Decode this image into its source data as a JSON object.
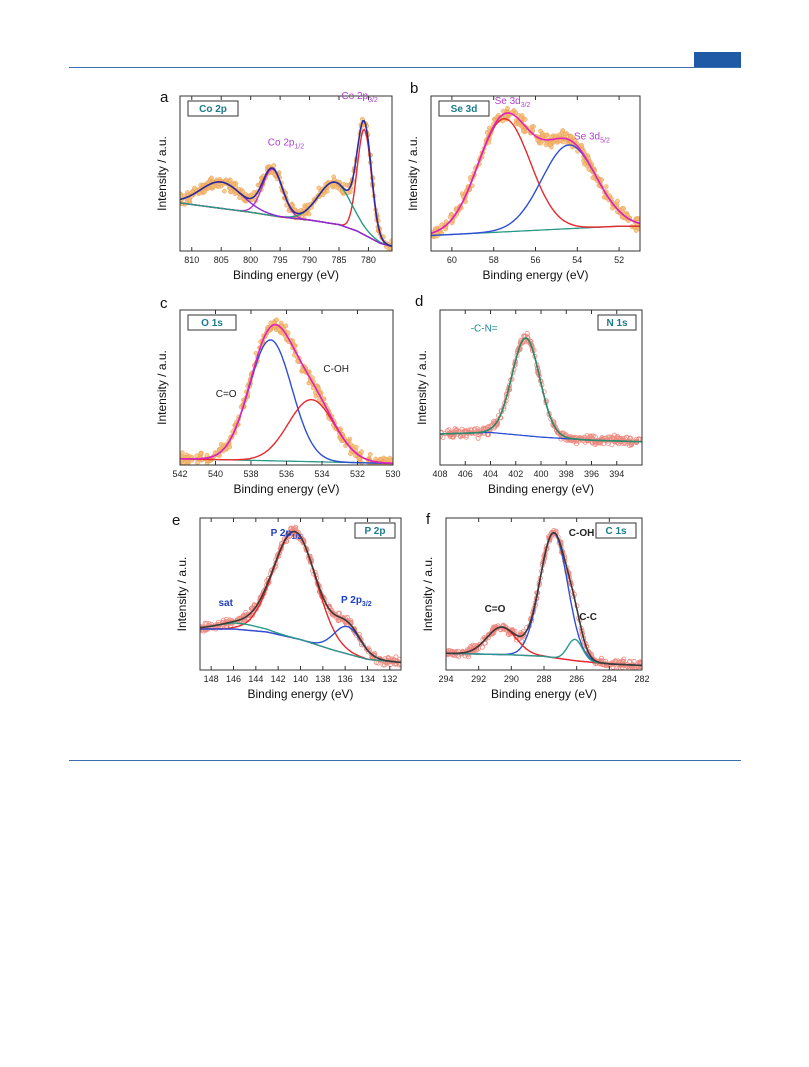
{
  "page": {
    "accent_color": "#1f5aa6"
  },
  "chart_data": [
    {
      "id": "a",
      "type": "line",
      "panel_label": "a",
      "element": "Co 2p",
      "xlabel": "Binding energy (eV)",
      "ylabel": "Intensity / a.u.",
      "xlim": [
        812,
        776
      ],
      "xticks": [
        810,
        805,
        800,
        795,
        790,
        785,
        780
      ],
      "ylim": [
        0,
        1
      ],
      "reversed_x": true,
      "data_style": "filled-circles",
      "annotations": [
        {
          "base": "Co 2p",
          "sub": "1/2",
          "x": 794,
          "y": 0.68,
          "color": "#b040d0"
        },
        {
          "base": "Co 2p",
          "sub": "3/2",
          "x": 781.5,
          "y": 0.98,
          "color": "#b040d0"
        }
      ],
      "background": {
        "name": "background",
        "color": "#8b8b2a",
        "points": [
          [
            812,
            0.31
          ],
          [
            806,
            0.28
          ],
          [
            800,
            0.25
          ],
          [
            795,
            0.22
          ],
          [
            790,
            0.2
          ],
          [
            785,
            0.17
          ],
          [
            782,
            0.13
          ],
          [
            780,
            0.09
          ],
          [
            778,
            0.05
          ],
          [
            776,
            0.03
          ]
        ]
      },
      "peaks": [
        {
          "center": 780.7,
          "height": 0.68,
          "sigma": 1.2,
          "color": "#e8282d"
        },
        {
          "center": 796.3,
          "height": 0.3,
          "sigma": 1.7,
          "color": "#c030c8"
        },
        {
          "center": 785.7,
          "height": 0.27,
          "sigma": 2.8,
          "color": "#2a9a88"
        },
        {
          "center": 805.0,
          "height": 0.17,
          "sigma": 3.5,
          "color": "#8a2ad0"
        }
      ],
      "envelope_color": "#2b2b9e",
      "points_color": "#f5b971"
    },
    {
      "id": "b",
      "type": "line",
      "panel_label": "b",
      "element": "Se 3d",
      "xlabel": "Binding energy (eV)",
      "ylabel": "Intensity / a.u.",
      "xlim": [
        61,
        51
      ],
      "xticks": [
        60,
        58,
        56,
        54,
        52
      ],
      "ylim": [
        0,
        1
      ],
      "reversed_x": true,
      "data_style": "filled-circles",
      "annotations": [
        {
          "base": "Se 3d",
          "sub": "3/2",
          "x": 57.1,
          "y": 0.95,
          "color": "#b040d0"
        },
        {
          "base": "Se 3d",
          "sub": "5/2",
          "x": 53.3,
          "y": 0.72,
          "color": "#b040d0"
        }
      ],
      "background": {
        "name": "background",
        "color": "#2a9a88",
        "points": [
          [
            61,
            0.1
          ],
          [
            58,
            0.12
          ],
          [
            55,
            0.14
          ],
          [
            52,
            0.16
          ],
          [
            51,
            0.16
          ]
        ]
      },
      "peaks": [
        {
          "center": 57.5,
          "height": 0.73,
          "sigma": 1.25,
          "color": "#e8282d"
        },
        {
          "center": 54.4,
          "height": 0.54,
          "sigma": 1.3,
          "color": "#2e4fd4"
        }
      ],
      "envelope_color": "#e020c0",
      "points_color": "#f5b971"
    },
    {
      "id": "c",
      "type": "line",
      "panel_label": "c",
      "element": "O 1s",
      "xlabel": "Binding energy (eV)",
      "ylabel": "Intensity / a.u.",
      "xlim": [
        542,
        530
      ],
      "xticks": [
        542,
        540,
        538,
        536,
        534,
        532,
        530
      ],
      "ylim": [
        0,
        1
      ],
      "reversed_x": true,
      "data_style": "filled-circles",
      "annotations": [
        {
          "base": "C=O",
          "sub": "",
          "x": 539.4,
          "y": 0.44,
          "color": "#222222"
        },
        {
          "base": "C-OH",
          "sub": "",
          "x": 533.2,
          "y": 0.6,
          "color": "#222222"
        }
      ],
      "background": {
        "name": "background",
        "color": "#2a9a88",
        "points": [
          [
            542,
            0.04
          ],
          [
            538,
            0.03
          ],
          [
            534,
            0.02
          ],
          [
            530,
            0.01
          ]
        ]
      },
      "peaks": [
        {
          "center": 536.9,
          "height": 0.78,
          "sigma": 1.2,
          "color": "#2e4fd4"
        },
        {
          "center": 534.6,
          "height": 0.4,
          "sigma": 1.3,
          "color": "#e8282d"
        }
      ],
      "envelope_color": "#e020c0",
      "points_color": "#f5b971"
    },
    {
      "id": "d",
      "type": "line",
      "panel_label": "d",
      "element": "N 1s",
      "xlabel": "Binding energy (eV)",
      "ylabel": "Intensity / a.u.",
      "xlim": [
        408,
        392
      ],
      "xticks": [
        408,
        406,
        404,
        402,
        400,
        398,
        396,
        394
      ],
      "ylim": [
        0,
        1
      ],
      "reversed_x": true,
      "data_style": "open-circles",
      "annotations": [
        {
          "base": "-C-N=",
          "sub": "",
          "x": 404.5,
          "y": 0.86,
          "color": "#1a8a8a"
        }
      ],
      "background": {
        "name": "background",
        "color": "#2e4fd4",
        "points": [
          [
            408,
            0.2
          ],
          [
            404,
            0.21
          ],
          [
            400,
            0.18
          ],
          [
            396,
            0.16
          ],
          [
            392,
            0.15
          ]
        ]
      },
      "peaks": [
        {
          "center": 401.2,
          "height": 0.63,
          "sigma": 1.1,
          "color": "#2a9a88"
        }
      ],
      "envelope_color": "#2a8a6a",
      "points_color": "#ee8a80"
    },
    {
      "id": "e",
      "type": "line",
      "panel_label": "e",
      "element": "P 2p",
      "xlabel": "Binding energy (eV)",
      "ylabel": "Intensity / a.u.",
      "xlim": [
        149,
        131
      ],
      "xticks": [
        148,
        146,
        144,
        142,
        140,
        138,
        136,
        134,
        132
      ],
      "ylim": [
        0,
        1
      ],
      "reversed_x": true,
      "data_style": "open-circles",
      "annotations": [
        {
          "base": "P 2p",
          "sub": "1/2",
          "x": 141.3,
          "y": 0.88,
          "color": "#1f3fc0"
        },
        {
          "base": "sat",
          "sub": "",
          "x": 146.7,
          "y": 0.42,
          "color": "#1f3fc0"
        },
        {
          "base": "P 2p",
          "sub": "3/2",
          "x": 135.0,
          "y": 0.44,
          "color": "#1f3fc0"
        }
      ],
      "background": {
        "name": "background",
        "color": "#d030d0",
        "points": [
          [
            149,
            0.27
          ],
          [
            146,
            0.27
          ],
          [
            143,
            0.25
          ],
          [
            140,
            0.2
          ],
          [
            137,
            0.13
          ],
          [
            134,
            0.07
          ],
          [
            131,
            0.05
          ]
        ]
      },
      "peaks": [
        {
          "center": 140.5,
          "height": 0.7,
          "sigma": 1.9,
          "color": "#e8282d"
        },
        {
          "center": 135.8,
          "height": 0.18,
          "sigma": 1.2,
          "color": "#2e4fd4"
        },
        {
          "center": 145.5,
          "height": 0.04,
          "sigma": 2.0,
          "color": "#2a9a88"
        }
      ],
      "envelope_color": "#3a3a3a",
      "points_color": "#ee8a80"
    },
    {
      "id": "f",
      "type": "line",
      "panel_label": "f",
      "element": "C 1s",
      "xlabel": "Binding energy (eV)",
      "ylabel": "Intensity / a.u.",
      "xlim": [
        294,
        282
      ],
      "xticks": [
        294,
        292,
        290,
        288,
        286,
        284,
        282
      ],
      "ylim": [
        0,
        1
      ],
      "reversed_x": true,
      "data_style": "open-circles",
      "annotations": [
        {
          "base": "C-OH",
          "sub": "",
          "x": 285.7,
          "y": 0.88,
          "color": "#222222"
        },
        {
          "base": "C=O",
          "sub": "",
          "x": 291.0,
          "y": 0.38,
          "color": "#222222"
        },
        {
          "base": "C-C",
          "sub": "",
          "x": 285.3,
          "y": 0.33,
          "color": "#222222"
        }
      ],
      "background": {
        "name": "background",
        "color": "#d030d0",
        "points": [
          [
            294,
            0.11
          ],
          [
            290,
            0.1
          ],
          [
            288,
            0.09
          ],
          [
            286,
            0.06
          ],
          [
            284,
            0.04
          ],
          [
            282,
            0.03
          ]
        ]
      },
      "peaks": [
        {
          "center": 287.4,
          "height": 0.82,
          "sigma": 0.85,
          "color": "#2e4fd4"
        },
        {
          "center": 290.6,
          "height": 0.18,
          "sigma": 0.9,
          "color": "#e8282d"
        },
        {
          "center": 286.1,
          "height": 0.14,
          "sigma": 0.45,
          "color": "#2a9a88"
        }
      ],
      "envelope_color": "#3a3a3a",
      "points_color": "#ee8a80"
    }
  ]
}
